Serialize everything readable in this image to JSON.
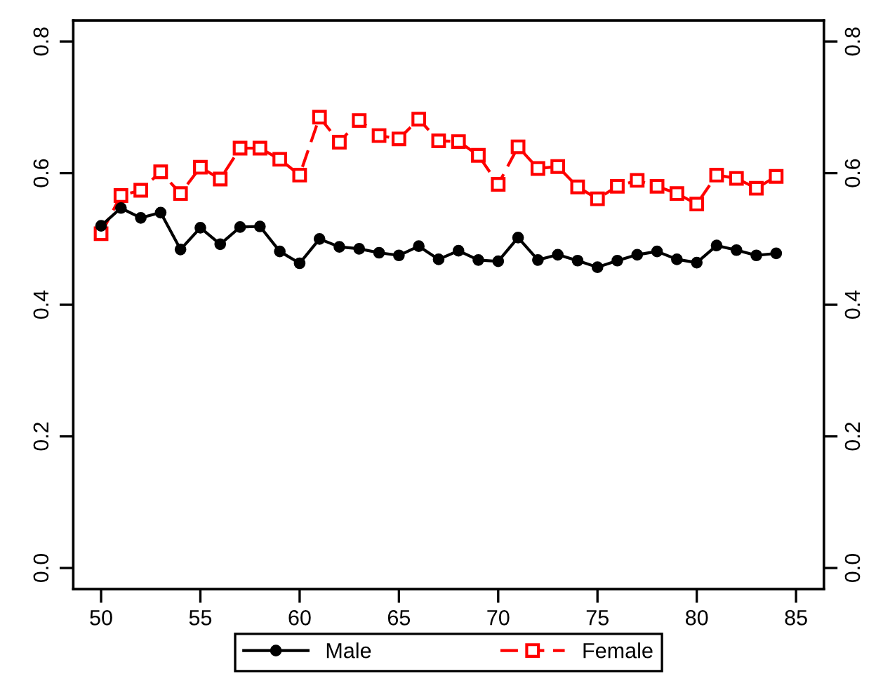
{
  "chart_data": {
    "type": "line",
    "x": [
      50,
      51,
      52,
      53,
      54,
      55,
      56,
      57,
      58,
      59,
      60,
      61,
      62,
      63,
      64,
      65,
      66,
      67,
      68,
      69,
      70,
      71,
      72,
      73,
      74,
      75,
      76,
      77,
      78,
      79,
      80,
      81,
      82,
      83,
      84
    ],
    "series": [
      {
        "name": "Male",
        "color": "#000000",
        "marker": "circle",
        "line_style": "solid",
        "values": [
          0.52,
          0.547,
          0.532,
          0.54,
          0.484,
          0.517,
          0.492,
          0.518,
          0.519,
          0.481,
          0.463,
          0.5,
          0.488,
          0.485,
          0.479,
          0.475,
          0.489,
          0.469,
          0.482,
          0.468,
          0.466,
          0.502,
          0.468,
          0.476,
          0.467,
          0.457,
          0.467,
          0.476,
          0.481,
          0.469,
          0.464,
          0.49,
          0.483,
          0.475,
          0.478
        ]
      },
      {
        "name": "Female",
        "color": "#ff0000",
        "marker": "square",
        "line_style": "dashed",
        "values": [
          0.508,
          0.566,
          0.574,
          0.602,
          0.569,
          0.609,
          0.591,
          0.638,
          0.638,
          0.621,
          0.597,
          0.685,
          0.647,
          0.68,
          0.657,
          0.652,
          0.682,
          0.649,
          0.648,
          0.627,
          0.583,
          0.64,
          0.607,
          0.61,
          0.579,
          0.561,
          0.58,
          0.589,
          0.58,
          0.569,
          0.553,
          0.597,
          0.592,
          0.577,
          0.595
        ]
      }
    ],
    "xlim": [
      48.6,
      86.4
    ],
    "xticks": [
      50,
      55,
      60,
      65,
      70,
      75,
      80,
      85
    ],
    "ylim": [
      -0.032,
      0.832
    ],
    "yticks": [
      {
        "value": 0,
        "label": "0.0"
      },
      {
        "value": 0.2,
        "label": "0.2"
      },
      {
        "value": 0.4,
        "label": "0.4"
      },
      {
        "value": 0.6,
        "label": "0.6"
      },
      {
        "value": 0.8,
        "label": "0.8"
      }
    ],
    "y2lim": [
      -0.032,
      0.832
    ],
    "y2ticks": [
      {
        "value": 0,
        "label": "0.0"
      },
      {
        "value": 0.2,
        "label": "0.2"
      },
      {
        "value": 0.4,
        "label": "0.4"
      },
      {
        "value": 0.6,
        "label": "0.6"
      },
      {
        "value": 0.8,
        "label": "0.8"
      }
    ],
    "grid": false,
    "legend": "bottom"
  }
}
